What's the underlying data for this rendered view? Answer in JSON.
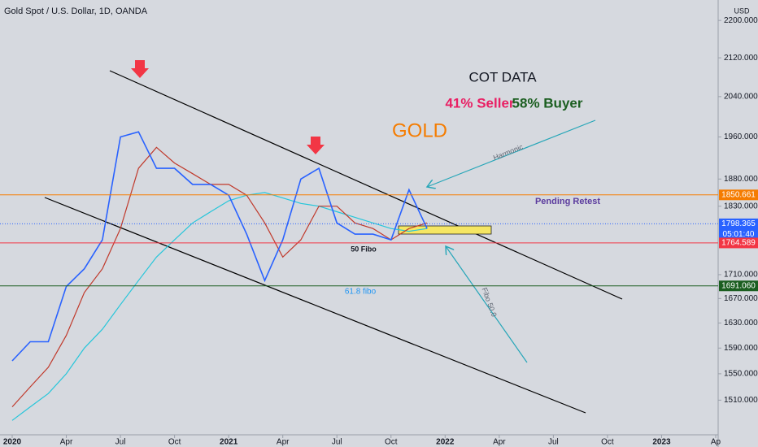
{
  "chart_data": {
    "type": "line",
    "title": "Gold Spot / U.S. Dollar, 1D, OANDA",
    "currency": "USD",
    "x": [
      "2020-01",
      "2020-02",
      "2020-03",
      "2020-04",
      "2020-05",
      "2020-06",
      "2020-07",
      "2020-08",
      "2020-09",
      "2020-10",
      "2020-11",
      "2020-12",
      "2021-01",
      "2021-02",
      "2021-03",
      "2021-04",
      "2021-05",
      "2021-06",
      "2021-07",
      "2021-08",
      "2021-09",
      "2021-10",
      "2021-11",
      "2021-12"
    ],
    "series": [
      {
        "color": "#2962ff",
        "values": [
          1570,
          1600,
          1600,
          1690,
          1720,
          1770,
          1960,
          1970,
          1900,
          1900,
          1870,
          1870,
          1850,
          1780,
          1700,
          1770,
          1880,
          1900,
          1800,
          1780,
          1780,
          1770,
          1860,
          1790
        ]
      },
      {
        "color": "#c0392b",
        "values": [
          1500,
          1530,
          1560,
          1610,
          1680,
          1720,
          1790,
          1900,
          1940,
          1910,
          1890,
          1870,
          1870,
          1850,
          1800,
          1740,
          1770,
          1830,
          1830,
          1800,
          1790,
          1770,
          1790,
          1800
        ]
      },
      {
        "color": "#26c6da",
        "values": [
          1480,
          1500,
          1520,
          1550,
          1590,
          1620,
          1660,
          1700,
          1740,
          1770,
          1800,
          1820,
          1840,
          1850,
          1855,
          1845,
          1835,
          1830,
          1820,
          1810,
          1800,
          1790,
          1785,
          1790
        ]
      }
    ],
    "xlim": [
      "2020-01",
      "2023-04"
    ],
    "xticks": [
      {
        "value": "2020-01",
        "label": "2020"
      },
      {
        "value": "2020-04",
        "label": "Apr"
      },
      {
        "value": "2020-07",
        "label": "Jul"
      },
      {
        "value": "2020-10",
        "label": "Oct"
      },
      {
        "value": "2021-01",
        "label": "2021"
      },
      {
        "value": "2021-04",
        "label": "Apr"
      },
      {
        "value": "2021-07",
        "label": "Jul"
      },
      {
        "value": "2021-10",
        "label": "Oct"
      },
      {
        "value": "2022-01",
        "label": "2022"
      },
      {
        "value": "2022-04",
        "label": "Apr"
      },
      {
        "value": "2022-07",
        "label": "Jul"
      },
      {
        "value": "2022-10",
        "label": "Oct"
      },
      {
        "value": "2023-01",
        "label": "2023"
      },
      {
        "value": "2023-04",
        "label": "Ap"
      }
    ],
    "ylim": [
      1459,
      2245
    ],
    "log_scale": true,
    "grid": false,
    "yticks": [
      {
        "value": 2200,
        "label": "2200.000"
      },
      {
        "value": 2120,
        "label": "2120.000"
      },
      {
        "value": 2040,
        "label": "2040.000"
      },
      {
        "value": 1960,
        "label": "1960.000"
      },
      {
        "value": 1880,
        "label": "1880.000"
      },
      {
        "value": 1830,
        "label": "1830.000"
      },
      {
        "value": 1710,
        "label": "1710.000"
      },
      {
        "value": 1670,
        "label": "1670.000"
      },
      {
        "value": 1630,
        "label": "1630.000"
      },
      {
        "value": 1590,
        "label": "1590.000"
      },
      {
        "value": 1550,
        "label": "1550.000"
      },
      {
        "value": 1510,
        "label": "1510.000"
      }
    ],
    "price_lines": [
      {
        "value": 1850.661,
        "color": "#f57c00"
      },
      {
        "value": 1798.365,
        "color": "#2962ff",
        "dotted": true,
        "countdown": "05:01:40"
      },
      {
        "value": 1764.589,
        "color": "#f23645"
      },
      {
        "value": 1691.06,
        "label": "1691.060",
        "color": "#1b5e20"
      }
    ],
    "annotations": {
      "cot": "COT DATA",
      "seller": "41% Seller",
      "buyer": "58% Buyer",
      "gold": "GOLD",
      "harmonic": "Harmonic",
      "retest": "Pending Retest",
      "fibo50": "50 Fibo",
      "fibo618": "61.8 fibo",
      "fibo500": "Fibo 50.0"
    }
  }
}
